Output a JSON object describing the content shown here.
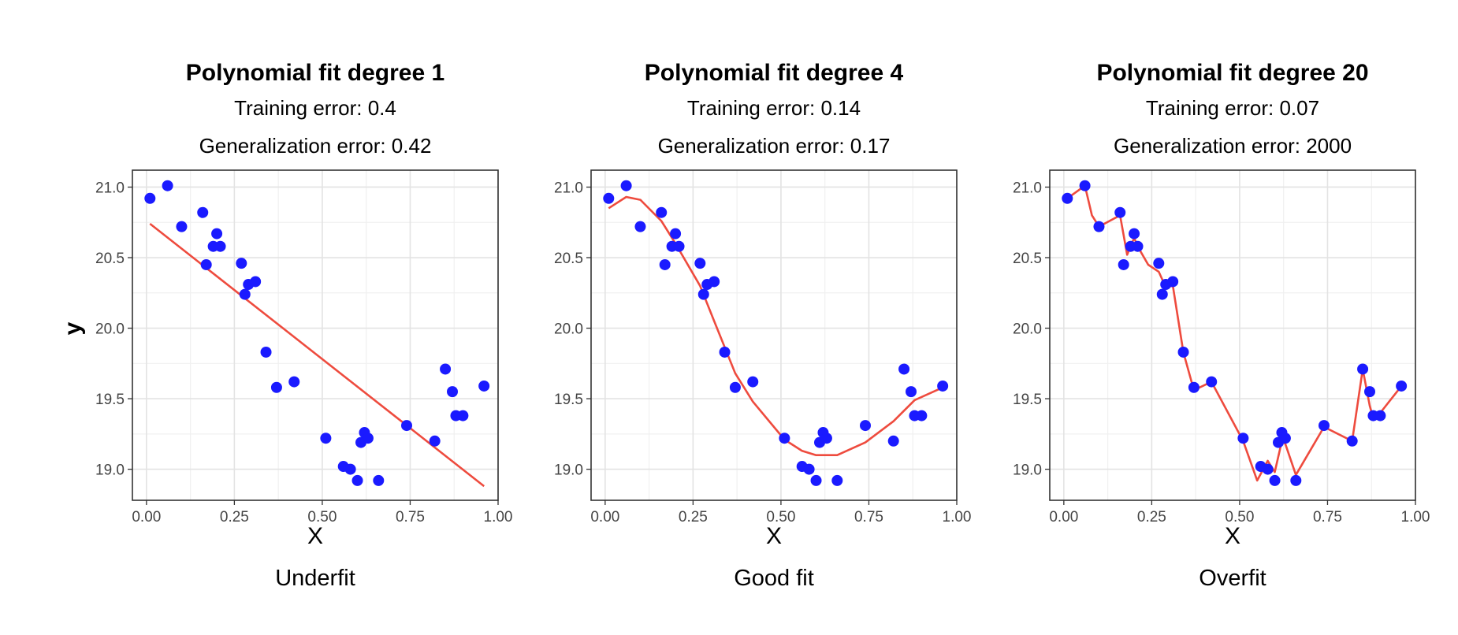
{
  "ylabel": "y",
  "chart_data": [
    {
      "type": "scatter",
      "title": "Polynomial fit degree 1",
      "subtitle1": "Training error: 0.4",
      "subtitle2": "Generalization error: 0.42",
      "xlabel": "X",
      "caption": "Underfit",
      "xlim": [
        -0.04,
        1.0
      ],
      "ylim": [
        18.78,
        21.12
      ],
      "xticks": [
        "0.00",
        "0.25",
        "0.50",
        "0.75",
        "1.00"
      ],
      "yticks": [
        "19.0",
        "19.5",
        "20.0",
        "20.5",
        "21.0"
      ],
      "points": [
        [
          0.01,
          20.92
        ],
        [
          0.06,
          21.01
        ],
        [
          0.1,
          20.72
        ],
        [
          0.16,
          20.82
        ],
        [
          0.17,
          20.45
        ],
        [
          0.19,
          20.58
        ],
        [
          0.2,
          20.67
        ],
        [
          0.21,
          20.58
        ],
        [
          0.27,
          20.46
        ],
        [
          0.28,
          20.24
        ],
        [
          0.29,
          20.31
        ],
        [
          0.31,
          20.33
        ],
        [
          0.34,
          19.83
        ],
        [
          0.37,
          19.58
        ],
        [
          0.42,
          19.62
        ],
        [
          0.51,
          19.22
        ],
        [
          0.56,
          19.02
        ],
        [
          0.58,
          19.0
        ],
        [
          0.6,
          18.92
        ],
        [
          0.61,
          19.19
        ],
        [
          0.62,
          19.26
        ],
        [
          0.63,
          19.22
        ],
        [
          0.66,
          18.92
        ],
        [
          0.74,
          19.31
        ],
        [
          0.82,
          19.2
        ],
        [
          0.85,
          19.71
        ],
        [
          0.87,
          19.55
        ],
        [
          0.88,
          19.38
        ],
        [
          0.9,
          19.38
        ],
        [
          0.96,
          19.59
        ]
      ],
      "fit": [
        [
          0.01,
          20.74
        ],
        [
          0.96,
          18.88
        ]
      ],
      "point_color": "#1a1aff",
      "line_color": "#ee4b3e"
    },
    {
      "type": "scatter",
      "title": "Polynomial fit degree 4",
      "subtitle1": "Training error: 0.14",
      "subtitle2": "Generalization error: 0.17",
      "xlabel": "X",
      "caption": "Good fit",
      "xlim": [
        -0.04,
        1.0
      ],
      "ylim": [
        18.78,
        21.12
      ],
      "xticks": [
        "0.00",
        "0.25",
        "0.50",
        "0.75",
        "1.00"
      ],
      "yticks": [
        "19.0",
        "19.5",
        "20.0",
        "20.5",
        "21.0"
      ],
      "points": [
        [
          0.01,
          20.92
        ],
        [
          0.06,
          21.01
        ],
        [
          0.1,
          20.72
        ],
        [
          0.16,
          20.82
        ],
        [
          0.17,
          20.45
        ],
        [
          0.19,
          20.58
        ],
        [
          0.2,
          20.67
        ],
        [
          0.21,
          20.58
        ],
        [
          0.27,
          20.46
        ],
        [
          0.28,
          20.24
        ],
        [
          0.29,
          20.31
        ],
        [
          0.31,
          20.33
        ],
        [
          0.34,
          19.83
        ],
        [
          0.37,
          19.58
        ],
        [
          0.42,
          19.62
        ],
        [
          0.51,
          19.22
        ],
        [
          0.56,
          19.02
        ],
        [
          0.58,
          19.0
        ],
        [
          0.6,
          18.92
        ],
        [
          0.61,
          19.19
        ],
        [
          0.62,
          19.26
        ],
        [
          0.63,
          19.22
        ],
        [
          0.66,
          18.92
        ],
        [
          0.74,
          19.31
        ],
        [
          0.82,
          19.2
        ],
        [
          0.85,
          19.71
        ],
        [
          0.87,
          19.55
        ],
        [
          0.88,
          19.38
        ],
        [
          0.9,
          19.38
        ],
        [
          0.96,
          19.59
        ]
      ],
      "fit": [
        [
          0.01,
          20.85
        ],
        [
          0.06,
          20.93
        ],
        [
          0.1,
          20.91
        ],
        [
          0.16,
          20.76
        ],
        [
          0.2,
          20.6
        ],
        [
          0.27,
          20.3
        ],
        [
          0.31,
          20.05
        ],
        [
          0.37,
          19.68
        ],
        [
          0.42,
          19.48
        ],
        [
          0.51,
          19.21
        ],
        [
          0.56,
          19.13
        ],
        [
          0.6,
          19.1
        ],
        [
          0.66,
          19.1
        ],
        [
          0.74,
          19.19
        ],
        [
          0.82,
          19.34
        ],
        [
          0.88,
          19.49
        ],
        [
          0.96,
          19.58
        ]
      ],
      "point_color": "#1a1aff",
      "line_color": "#ee4b3e"
    },
    {
      "type": "scatter",
      "title": "Polynomial fit degree 20",
      "subtitle1": "Training error: 0.07",
      "subtitle2": "Generalization error: 2000",
      "xlabel": "X",
      "caption": "Overfit",
      "xlim": [
        -0.04,
        1.0
      ],
      "ylim": [
        18.78,
        21.12
      ],
      "xticks": [
        "0.00",
        "0.25",
        "0.50",
        "0.75",
        "1.00"
      ],
      "yticks": [
        "19.0",
        "19.5",
        "20.0",
        "20.5",
        "21.0"
      ],
      "points": [
        [
          0.01,
          20.92
        ],
        [
          0.06,
          21.01
        ],
        [
          0.1,
          20.72
        ],
        [
          0.16,
          20.82
        ],
        [
          0.17,
          20.45
        ],
        [
          0.19,
          20.58
        ],
        [
          0.2,
          20.67
        ],
        [
          0.21,
          20.58
        ],
        [
          0.27,
          20.46
        ],
        [
          0.28,
          20.24
        ],
        [
          0.29,
          20.31
        ],
        [
          0.31,
          20.33
        ],
        [
          0.34,
          19.83
        ],
        [
          0.37,
          19.58
        ],
        [
          0.42,
          19.62
        ],
        [
          0.51,
          19.22
        ],
        [
          0.56,
          19.02
        ],
        [
          0.58,
          19.0
        ],
        [
          0.6,
          18.92
        ],
        [
          0.61,
          19.19
        ],
        [
          0.62,
          19.26
        ],
        [
          0.63,
          19.22
        ],
        [
          0.66,
          18.92
        ],
        [
          0.74,
          19.31
        ],
        [
          0.82,
          19.2
        ],
        [
          0.85,
          19.71
        ],
        [
          0.87,
          19.55
        ],
        [
          0.88,
          19.38
        ],
        [
          0.9,
          19.38
        ],
        [
          0.96,
          19.59
        ]
      ],
      "fit": [
        [
          0.01,
          20.92
        ],
        [
          0.06,
          21.01
        ],
        [
          0.08,
          20.8
        ],
        [
          0.1,
          20.72
        ],
        [
          0.13,
          20.76
        ],
        [
          0.16,
          20.8
        ],
        [
          0.18,
          20.52
        ],
        [
          0.2,
          20.64
        ],
        [
          0.21,
          20.58
        ],
        [
          0.24,
          20.45
        ],
        [
          0.27,
          20.4
        ],
        [
          0.29,
          20.29
        ],
        [
          0.31,
          20.3
        ],
        [
          0.34,
          19.83
        ],
        [
          0.37,
          19.56
        ],
        [
          0.42,
          19.62
        ],
        [
          0.51,
          19.2
        ],
        [
          0.55,
          18.92
        ],
        [
          0.58,
          19.06
        ],
        [
          0.6,
          18.98
        ],
        [
          0.62,
          19.2
        ],
        [
          0.63,
          19.18
        ],
        [
          0.66,
          18.96
        ],
        [
          0.74,
          19.3
        ],
        [
          0.82,
          19.2
        ],
        [
          0.85,
          19.71
        ],
        [
          0.87,
          19.45
        ],
        [
          0.88,
          19.36
        ],
        [
          0.9,
          19.4
        ],
        [
          0.96,
          19.59
        ]
      ],
      "point_color": "#1a1aff",
      "line_color": "#ee4b3e"
    }
  ]
}
